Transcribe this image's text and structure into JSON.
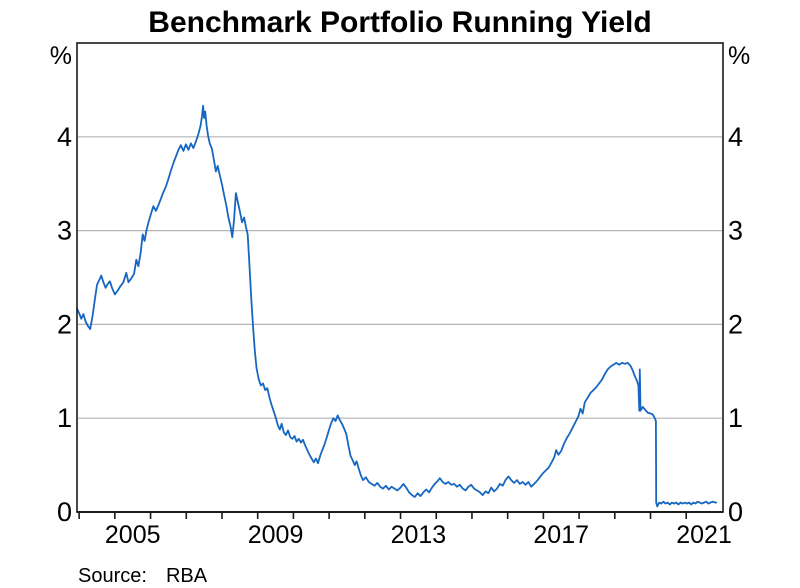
{
  "title": "Benchmark Portfolio Running Yield",
  "source": {
    "label": "Source:",
    "value": "RBA"
  },
  "colors": {
    "line": "#1667c1",
    "grid": "#b5b5b5",
    "frame": "#1a1a1a",
    "text": "#000000",
    "background": "#ffffff"
  },
  "chart_data": {
    "type": "line",
    "title": "Benchmark Portfolio Running Yield",
    "ylabel_left": "%",
    "ylabel_right": "%",
    "xlim": [
      2003.94,
      2022.03
    ],
    "ylim": [
      0,
      5
    ],
    "grid": "horizontal",
    "legend": "none",
    "y_ticks": [
      {
        "value": 0,
        "label": "0"
      },
      {
        "value": 1,
        "label": "1"
      },
      {
        "value": 2,
        "label": "2"
      },
      {
        "value": 3,
        "label": "3"
      },
      {
        "value": 4,
        "label": "4"
      }
    ],
    "y_gridlines": [
      1,
      2,
      3,
      4
    ],
    "x_minor_ticks": [
      2004,
      2005,
      2006,
      2007,
      2008,
      2009,
      2010,
      2011,
      2012,
      2013,
      2014,
      2015,
      2016,
      2017,
      2018,
      2019,
      2020,
      2021
    ],
    "x_labels": [
      {
        "position": 2005.5,
        "label": "2005"
      },
      {
        "position": 2009.5,
        "label": "2009"
      },
      {
        "position": 2013.5,
        "label": "2013"
      },
      {
        "position": 2017.5,
        "label": "2017"
      },
      {
        "position": 2021.5,
        "label": "2021"
      }
    ],
    "series": [
      {
        "name": "Benchmark portfolio running yield",
        "unit": "%",
        "points": [
          [
            2003.94,
            2.17
          ],
          [
            2004.0,
            2.12
          ],
          [
            2004.06,
            2.06
          ],
          [
            2004.12,
            2.11
          ],
          [
            2004.18,
            2.03
          ],
          [
            2004.25,
            1.98
          ],
          [
            2004.31,
            1.95
          ],
          [
            2004.38,
            2.1
          ],
          [
            2004.44,
            2.27
          ],
          [
            2004.5,
            2.42
          ],
          [
            2004.56,
            2.47
          ],
          [
            2004.62,
            2.52
          ],
          [
            2004.68,
            2.45
          ],
          [
            2004.74,
            2.39
          ],
          [
            2004.8,
            2.43
          ],
          [
            2004.86,
            2.46
          ],
          [
            2004.92,
            2.39
          ],
          [
            2005.0,
            2.32
          ],
          [
            2005.08,
            2.36
          ],
          [
            2005.16,
            2.41
          ],
          [
            2005.24,
            2.45
          ],
          [
            2005.32,
            2.55
          ],
          [
            2005.38,
            2.45
          ],
          [
            2005.46,
            2.49
          ],
          [
            2005.54,
            2.54
          ],
          [
            2005.6,
            2.69
          ],
          [
            2005.66,
            2.62
          ],
          [
            2005.72,
            2.76
          ],
          [
            2005.78,
            2.96
          ],
          [
            2005.83,
            2.89
          ],
          [
            2005.89,
            3.01
          ],
          [
            2005.95,
            3.1
          ],
          [
            2006.02,
            3.19
          ],
          [
            2006.08,
            3.26
          ],
          [
            2006.15,
            3.21
          ],
          [
            2006.22,
            3.27
          ],
          [
            2006.29,
            3.34
          ],
          [
            2006.36,
            3.41
          ],
          [
            2006.43,
            3.47
          ],
          [
            2006.5,
            3.55
          ],
          [
            2006.57,
            3.64
          ],
          [
            2006.64,
            3.72
          ],
          [
            2006.71,
            3.79
          ],
          [
            2006.78,
            3.86
          ],
          [
            2006.85,
            3.91
          ],
          [
            2006.92,
            3.85
          ],
          [
            2006.99,
            3.92
          ],
          [
            2007.06,
            3.86
          ],
          [
            2007.13,
            3.93
          ],
          [
            2007.2,
            3.88
          ],
          [
            2007.27,
            3.95
          ],
          [
            2007.34,
            4.03
          ],
          [
            2007.4,
            4.12
          ],
          [
            2007.44,
            4.22
          ],
          [
            2007.47,
            4.33
          ],
          [
            2007.5,
            4.2
          ],
          [
            2007.53,
            4.27
          ],
          [
            2007.57,
            4.12
          ],
          [
            2007.61,
            4.01
          ],
          [
            2007.66,
            3.93
          ],
          [
            2007.72,
            3.87
          ],
          [
            2007.78,
            3.74
          ],
          [
            2007.83,
            3.63
          ],
          [
            2007.88,
            3.69
          ],
          [
            2007.94,
            3.59
          ],
          [
            2008.0,
            3.49
          ],
          [
            2008.06,
            3.38
          ],
          [
            2008.12,
            3.27
          ],
          [
            2008.18,
            3.14
          ],
          [
            2008.24,
            3.04
          ],
          [
            2008.29,
            2.93
          ],
          [
            2008.34,
            3.12
          ],
          [
            2008.39,
            3.4
          ],
          [
            2008.44,
            3.31
          ],
          [
            2008.5,
            3.21
          ],
          [
            2008.56,
            3.09
          ],
          [
            2008.62,
            3.14
          ],
          [
            2008.67,
            3.04
          ],
          [
            2008.72,
            2.96
          ],
          [
            2008.77,
            2.62
          ],
          [
            2008.82,
            2.27
          ],
          [
            2008.87,
            1.97
          ],
          [
            2008.92,
            1.72
          ],
          [
            2008.97,
            1.53
          ],
          [
            2009.03,
            1.41
          ],
          [
            2009.09,
            1.35
          ],
          [
            2009.15,
            1.37
          ],
          [
            2009.21,
            1.3
          ],
          [
            2009.27,
            1.32
          ],
          [
            2009.33,
            1.22
          ],
          [
            2009.39,
            1.14
          ],
          [
            2009.45,
            1.07
          ],
          [
            2009.51,
            1.0
          ],
          [
            2009.57,
            0.92
          ],
          [
            2009.62,
            0.88
          ],
          [
            2009.67,
            0.94
          ],
          [
            2009.73,
            0.85
          ],
          [
            2009.79,
            0.82
          ],
          [
            2009.85,
            0.87
          ],
          [
            2009.91,
            0.8
          ],
          [
            2009.97,
            0.78
          ],
          [
            2010.03,
            0.81
          ],
          [
            2010.09,
            0.75
          ],
          [
            2010.15,
            0.78
          ],
          [
            2010.21,
            0.74
          ],
          [
            2010.27,
            0.77
          ],
          [
            2010.33,
            0.71
          ],
          [
            2010.39,
            0.66
          ],
          [
            2010.45,
            0.61
          ],
          [
            2010.51,
            0.57
          ],
          [
            2010.57,
            0.53
          ],
          [
            2010.63,
            0.57
          ],
          [
            2010.69,
            0.52
          ],
          [
            2010.75,
            0.6
          ],
          [
            2010.81,
            0.66
          ],
          [
            2010.87,
            0.72
          ],
          [
            2010.93,
            0.79
          ],
          [
            2011.0,
            0.88
          ],
          [
            2011.06,
            0.95
          ],
          [
            2011.12,
            1.0
          ],
          [
            2011.18,
            0.97
          ],
          [
            2011.24,
            1.03
          ],
          [
            2011.3,
            0.98
          ],
          [
            2011.36,
            0.94
          ],
          [
            2011.42,
            0.89
          ],
          [
            2011.48,
            0.83
          ],
          [
            2011.54,
            0.71
          ],
          [
            2011.6,
            0.6
          ],
          [
            2011.66,
            0.55
          ],
          [
            2011.72,
            0.5
          ],
          [
            2011.77,
            0.54
          ],
          [
            2011.83,
            0.46
          ],
          [
            2011.89,
            0.39
          ],
          [
            2011.95,
            0.34
          ],
          [
            2012.03,
            0.37
          ],
          [
            2012.11,
            0.32
          ],
          [
            2012.19,
            0.3
          ],
          [
            2012.27,
            0.28
          ],
          [
            2012.35,
            0.31
          ],
          [
            2012.43,
            0.27
          ],
          [
            2012.51,
            0.25
          ],
          [
            2012.59,
            0.28
          ],
          [
            2012.67,
            0.24
          ],
          [
            2012.75,
            0.27
          ],
          [
            2012.83,
            0.25
          ],
          [
            2012.91,
            0.23
          ],
          [
            2013.0,
            0.26
          ],
          [
            2013.08,
            0.3
          ],
          [
            2013.16,
            0.26
          ],
          [
            2013.24,
            0.21
          ],
          [
            2013.32,
            0.18
          ],
          [
            2013.4,
            0.16
          ],
          [
            2013.48,
            0.2
          ],
          [
            2013.56,
            0.17
          ],
          [
            2013.64,
            0.21
          ],
          [
            2013.72,
            0.24
          ],
          [
            2013.8,
            0.21
          ],
          [
            2013.88,
            0.26
          ],
          [
            2013.96,
            0.3
          ],
          [
            2014.04,
            0.33
          ],
          [
            2014.1,
            0.36
          ],
          [
            2014.18,
            0.32
          ],
          [
            2014.26,
            0.3
          ],
          [
            2014.34,
            0.32
          ],
          [
            2014.42,
            0.29
          ],
          [
            2014.5,
            0.3
          ],
          [
            2014.58,
            0.27
          ],
          [
            2014.66,
            0.29
          ],
          [
            2014.74,
            0.25
          ],
          [
            2014.82,
            0.23
          ],
          [
            2014.9,
            0.27
          ],
          [
            2014.98,
            0.29
          ],
          [
            2015.06,
            0.25
          ],
          [
            2015.14,
            0.23
          ],
          [
            2015.22,
            0.21
          ],
          [
            2015.3,
            0.18
          ],
          [
            2015.38,
            0.22
          ],
          [
            2015.46,
            0.2
          ],
          [
            2015.54,
            0.26
          ],
          [
            2015.62,
            0.22
          ],
          [
            2015.7,
            0.25
          ],
          [
            2015.78,
            0.3
          ],
          [
            2015.86,
            0.28
          ],
          [
            2015.94,
            0.34
          ],
          [
            2016.02,
            0.38
          ],
          [
            2016.1,
            0.34
          ],
          [
            2016.18,
            0.31
          ],
          [
            2016.26,
            0.34
          ],
          [
            2016.34,
            0.3
          ],
          [
            2016.42,
            0.32
          ],
          [
            2016.5,
            0.29
          ],
          [
            2016.58,
            0.32
          ],
          [
            2016.66,
            0.27
          ],
          [
            2016.74,
            0.3
          ],
          [
            2016.82,
            0.33
          ],
          [
            2016.9,
            0.37
          ],
          [
            2016.98,
            0.41
          ],
          [
            2017.06,
            0.44
          ],
          [
            2017.14,
            0.47
          ],
          [
            2017.22,
            0.52
          ],
          [
            2017.3,
            0.58
          ],
          [
            2017.36,
            0.66
          ],
          [
            2017.42,
            0.61
          ],
          [
            2017.5,
            0.65
          ],
          [
            2017.58,
            0.73
          ],
          [
            2017.66,
            0.79
          ],
          [
            2017.74,
            0.84
          ],
          [
            2017.82,
            0.9
          ],
          [
            2017.9,
            0.96
          ],
          [
            2017.98,
            1.02
          ],
          [
            2018.04,
            1.1
          ],
          [
            2018.1,
            1.05
          ],
          [
            2018.16,
            1.17
          ],
          [
            2018.24,
            1.22
          ],
          [
            2018.32,
            1.27
          ],
          [
            2018.4,
            1.3
          ],
          [
            2018.48,
            1.33
          ],
          [
            2018.56,
            1.37
          ],
          [
            2018.64,
            1.41
          ],
          [
            2018.72,
            1.47
          ],
          [
            2018.8,
            1.52
          ],
          [
            2018.88,
            1.55
          ],
          [
            2018.96,
            1.57
          ],
          [
            2019.04,
            1.59
          ],
          [
            2019.12,
            1.57
          ],
          [
            2019.2,
            1.59
          ],
          [
            2019.28,
            1.58
          ],
          [
            2019.36,
            1.59
          ],
          [
            2019.44,
            1.56
          ],
          [
            2019.5,
            1.51
          ],
          [
            2019.56,
            1.45
          ],
          [
            2019.62,
            1.4
          ],
          [
            2019.66,
            1.35
          ],
          [
            2019.685,
            1.08
          ],
          [
            2019.7,
            1.52
          ],
          [
            2019.72,
            1.08
          ],
          [
            2019.78,
            1.12
          ],
          [
            2019.85,
            1.09
          ],
          [
            2019.92,
            1.06
          ],
          [
            2020.0,
            1.05
          ],
          [
            2020.06,
            1.04
          ],
          [
            2020.12,
            1.0
          ],
          [
            2020.15,
            0.97
          ],
          [
            2020.16,
            0.1
          ],
          [
            2020.19,
            0.06
          ],
          [
            2020.24,
            0.1
          ],
          [
            2020.3,
            0.09
          ],
          [
            2020.36,
            0.11
          ],
          [
            2020.42,
            0.09
          ],
          [
            2020.48,
            0.1
          ],
          [
            2020.54,
            0.08
          ],
          [
            2020.6,
            0.1
          ],
          [
            2020.66,
            0.09
          ],
          [
            2020.72,
            0.1
          ],
          [
            2020.78,
            0.08
          ],
          [
            2020.84,
            0.1
          ],
          [
            2020.9,
            0.09
          ],
          [
            2020.96,
            0.1
          ],
          [
            2021.02,
            0.09
          ],
          [
            2021.08,
            0.1
          ],
          [
            2021.14,
            0.08
          ],
          [
            2021.2,
            0.1
          ],
          [
            2021.26,
            0.09
          ],
          [
            2021.32,
            0.11
          ],
          [
            2021.38,
            0.1
          ],
          [
            2021.44,
            0.09
          ],
          [
            2021.5,
            0.1
          ],
          [
            2021.56,
            0.11
          ],
          [
            2021.62,
            0.09
          ],
          [
            2021.68,
            0.1
          ],
          [
            2021.74,
            0.11
          ],
          [
            2021.84,
            0.1
          ]
        ]
      }
    ]
  }
}
